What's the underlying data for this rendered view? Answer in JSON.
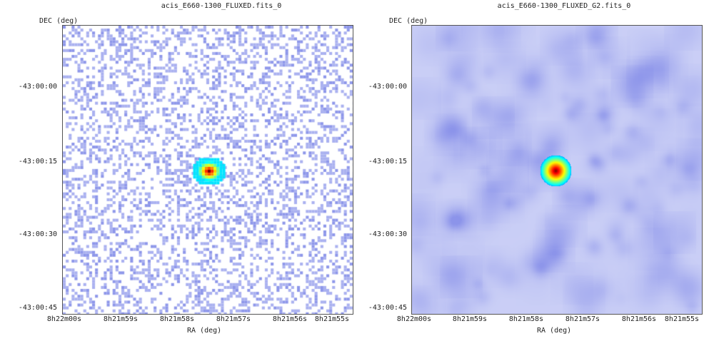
{
  "panels": [
    {
      "title": "acis_E660-1300_FLUXED.fits_0",
      "ylabel": "DEC (deg)",
      "xlabel": "RA (deg)",
      "yticks": [
        "-43:00:00",
        "-43:00:15",
        "-43:00:30",
        "-43:00:45"
      ],
      "xticks": [
        "8h22m00s",
        "8h21m59s",
        "8h21m58s",
        "8h21m57s",
        "8h21m56s",
        "8h21m55s"
      ],
      "style": "sparse-pixels"
    },
    {
      "title": "acis_E660-1300_FLUXED_G2.fits_0",
      "ylabel": "DEC (deg)",
      "xlabel": "RA (deg)",
      "yticks": [
        "-43:00:00",
        "-43:00:15",
        "-43:00:30",
        "-43:00:45"
      ],
      "xticks": [
        "8h22m00s",
        "8h21m59s",
        "8h21m58s",
        "8h21m57s",
        "8h21m56s",
        "8h21m55s"
      ],
      "style": "smoothed"
    }
  ],
  "colors": {
    "background_blue": "#c8ccf4",
    "pixel_blue": "#9aa2ee",
    "frame": "#555555"
  }
}
